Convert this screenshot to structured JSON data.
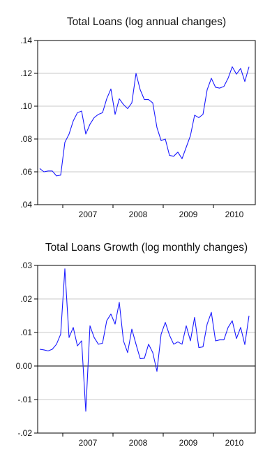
{
  "chart_data": [
    {
      "type": "line",
      "title": "Total Loans (log annual changes)",
      "xlabel": "",
      "ylabel": "",
      "x_tick_labels": [
        "2007",
        "2008",
        "2009",
        "2010"
      ],
      "y_tick_labels": [
        ".04",
        ".06",
        ".08",
        ".10",
        ".12",
        ".14"
      ],
      "y_ticks": [
        0.04,
        0.06,
        0.08,
        0.1,
        0.12,
        0.14
      ],
      "ylim": [
        0.04,
        0.14
      ],
      "x_start": "2006-07",
      "grid": "horizontal",
      "series": [
        {
          "color": "#1a1aff",
          "values": [
            0.062,
            0.06,
            0.0605,
            0.0605,
            0.0575,
            0.058,
            0.078,
            0.083,
            0.091,
            0.096,
            0.097,
            0.083,
            0.089,
            0.093,
            0.095,
            0.096,
            0.1045,
            0.1105,
            0.095,
            0.1045,
            0.101,
            0.0985,
            0.102,
            0.12,
            0.11,
            0.104,
            0.104,
            0.102,
            0.087,
            0.079,
            0.08,
            0.07,
            0.0695,
            0.072,
            0.068,
            0.075,
            0.082,
            0.0945,
            0.093,
            0.095,
            0.11,
            0.117,
            0.1115,
            0.111,
            0.112,
            0.117,
            0.124,
            0.1195,
            0.123,
            0.115,
            0.124
          ]
        }
      ]
    },
    {
      "type": "line",
      "title": "Total Loans Growth (log monthly changes)",
      "xlabel": "",
      "ylabel": "",
      "x_tick_labels": [
        "2007",
        "2008",
        "2009",
        "2010"
      ],
      "y_tick_labels": [
        "-.02",
        "-.01",
        "0.00",
        ".01",
        ".02",
        ".03"
      ],
      "y_ticks": [
        -0.02,
        -0.01,
        0.0,
        0.01,
        0.02,
        0.03
      ],
      "ylim": [
        -0.02,
        0.03
      ],
      "x_start": "2006-07",
      "grid": "horizontal",
      "zero_line": true,
      "series": [
        {
          "color": "#1a1aff",
          "values": [
            0.005,
            0.0048,
            0.0045,
            0.005,
            0.0065,
            0.0095,
            0.029,
            0.0085,
            0.0115,
            0.006,
            0.0075,
            -0.0135,
            0.012,
            0.0085,
            0.0065,
            0.0068,
            0.0135,
            0.0155,
            0.0125,
            0.019,
            0.0075,
            0.004,
            0.011,
            0.0065,
            0.0022,
            0.0023,
            0.0065,
            0.004,
            -0.0016,
            0.0095,
            0.013,
            0.0092,
            0.0065,
            0.0072,
            0.0065,
            0.012,
            0.0075,
            0.0145,
            0.0055,
            0.0057,
            0.0125,
            0.016,
            0.0075,
            0.0078,
            0.0078,
            0.0115,
            0.0135,
            0.0082,
            0.0115,
            0.0064,
            0.015
          ]
        }
      ]
    }
  ]
}
